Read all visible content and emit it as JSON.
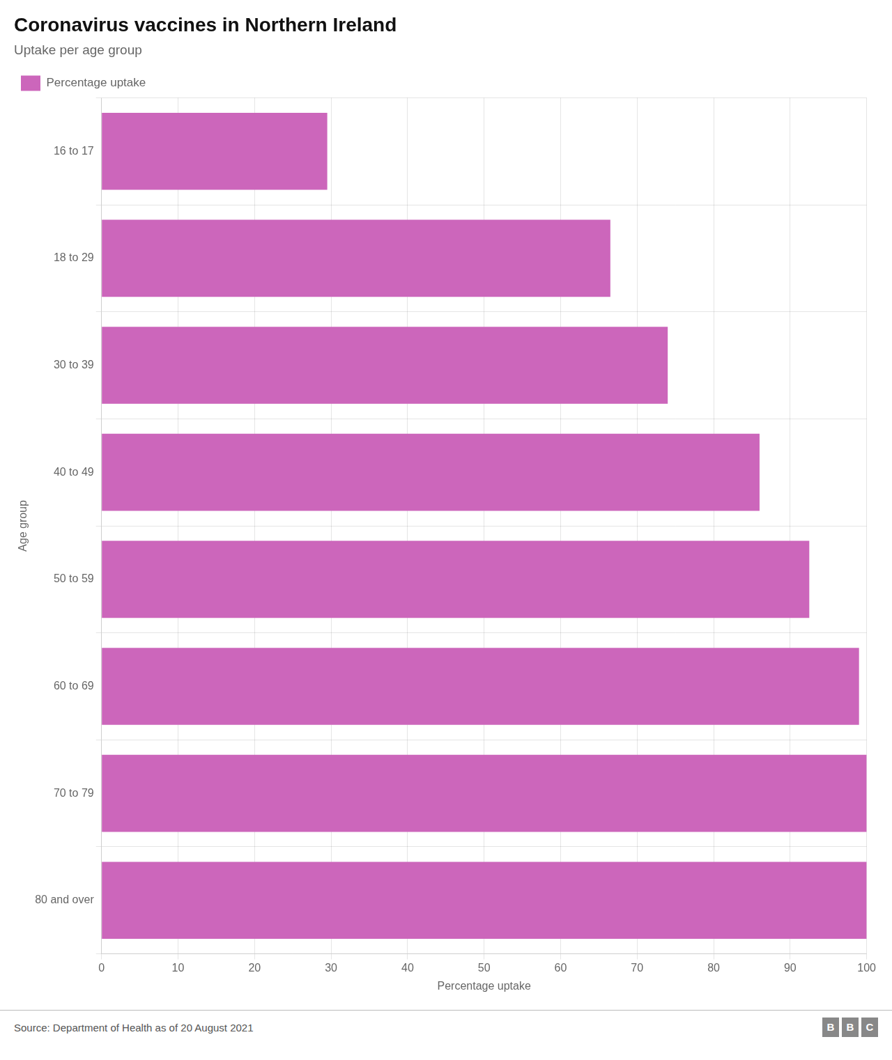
{
  "chart_data": {
    "type": "bar",
    "orientation": "horizontal",
    "title": "Coronavirus vaccines in Northern Ireland",
    "subtitle": "Uptake per age group",
    "x_label": "Percentage uptake",
    "y_label": "Age group",
    "annotations": [
      "Source: Department of Health as of 20 August 2021",
      "BBC"
    ],
    "categories": [
      "16 to 17",
      "18 to 29",
      "30 to 39",
      "40 to 49",
      "50 to 59",
      "60 to 69",
      "70 to 79",
      "80 and over"
    ],
    "series": [
      {
        "name": "Percentage uptake",
        "color": "#cc66bb",
        "values": [
          29.5,
          66.5,
          74.0,
          86.0,
          92.5,
          99.0,
          100.0,
          100.0
        ]
      }
    ],
    "xlim": [
      0,
      100
    ],
    "xticks": [
      0,
      10,
      20,
      30,
      40,
      50,
      60,
      70,
      80,
      90,
      100
    ],
    "grid": true,
    "legend": "top-left"
  }
}
